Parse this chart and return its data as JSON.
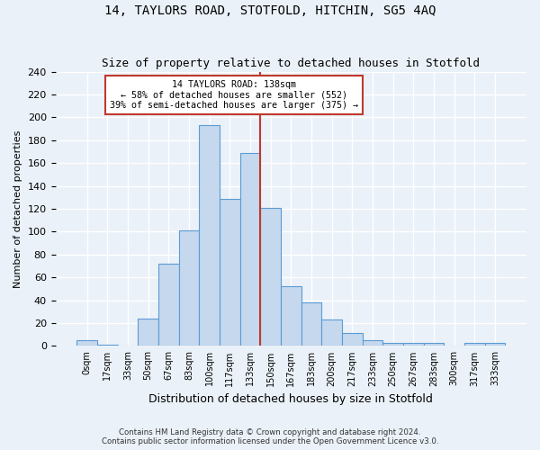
{
  "title": "14, TAYLORS ROAD, STOTFOLD, HITCHIN, SG5 4AQ",
  "subtitle": "Size of property relative to detached houses in Stotfold",
  "xlabel": "Distribution of detached houses by size in Stotfold",
  "ylabel": "Number of detached properties",
  "footer1": "Contains HM Land Registry data © Crown copyright and database right 2024.",
  "footer2": "Contains public sector information licensed under the Open Government Licence v3.0.",
  "bar_labels": [
    "0sqm",
    "17sqm",
    "33sqm",
    "50sqm",
    "67sqm",
    "83sqm",
    "100sqm",
    "117sqm",
    "133sqm",
    "150sqm",
    "167sqm",
    "183sqm",
    "200sqm",
    "217sqm",
    "233sqm",
    "250sqm",
    "267sqm",
    "283sqm",
    "300sqm",
    "317sqm",
    "333sqm"
  ],
  "bar_heights": [
    5,
    1,
    0,
    24,
    72,
    101,
    193,
    129,
    169,
    121,
    52,
    38,
    23,
    11,
    5,
    3,
    3,
    3,
    0,
    3,
    3
  ],
  "bar_color": "#c5d8ed",
  "bar_edge_color": "#5b9bd5",
  "background_color": "#eaf1f8",
  "grid_color": "#ffffff",
  "property_label": "14 TAYLORS ROAD: 138sqm",
  "annotation_line1": "← 58% of detached houses are smaller (552)",
  "annotation_line2": "39% of semi-detached houses are larger (375) →",
  "vline_x": 8.5,
  "vline_color": "#c0392b",
  "annotation_box_color": "#ffffff",
  "annotation_box_edge": "#c0392b",
  "ylim": [
    0,
    240
  ],
  "yticks": [
    0,
    20,
    40,
    60,
    80,
    100,
    120,
    140,
    160,
    180,
    200,
    220,
    240
  ]
}
